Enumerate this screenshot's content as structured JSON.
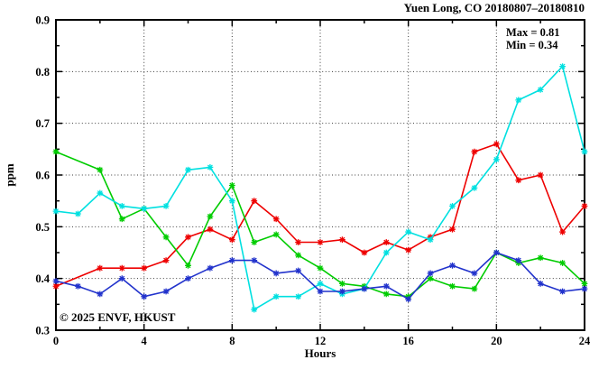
{
  "title": "Yuen Long, CO 20180807–20180810",
  "watermark": "© 2025 ENVF, HKUST",
  "annotation": {
    "max_label": "Max = 0.81",
    "min_label": "Min = 0.34"
  },
  "chart_data": {
    "type": "line",
    "title": "Yuen Long, CO 20180807–20180810",
    "xlabel": "Hours",
    "ylabel": "ppm",
    "xlim": [
      0,
      24
    ],
    "ylim": [
      0.3,
      0.9
    ],
    "x_major_ticks": [
      0,
      4,
      8,
      12,
      16,
      20,
      24
    ],
    "x_minor_ticks": [
      2,
      6,
      10,
      14,
      18,
      22
    ],
    "y_major_ticks": [
      0.3,
      0.4,
      0.5,
      0.6,
      0.7,
      0.8,
      0.9
    ],
    "y_minor_ticks": [
      0.35,
      0.45,
      0.55,
      0.65,
      0.75,
      0.85
    ],
    "grid": "dotted lines at major ticks, on",
    "legend_position": "none",
    "marker": "asterisk",
    "x": [
      0,
      1,
      2,
      3,
      4,
      5,
      6,
      7,
      8,
      9,
      10,
      11,
      12,
      13,
      14,
      15,
      16,
      17,
      18,
      19,
      20,
      21,
      22,
      23,
      24
    ],
    "series": [
      {
        "name": "red",
        "color": "#ee0000",
        "values": [
          0.385,
          null,
          0.42,
          0.42,
          0.42,
          0.435,
          0.48,
          0.495,
          0.475,
          0.55,
          0.515,
          0.47,
          0.47,
          0.475,
          0.45,
          0.47,
          0.455,
          0.48,
          0.495,
          0.645,
          0.66,
          0.59,
          0.6,
          0.49,
          0.54
        ]
      },
      {
        "name": "green",
        "color": "#00cc00",
        "values": [
          0.645,
          null,
          0.61,
          0.515,
          0.535,
          0.48,
          0.425,
          0.52,
          0.58,
          0.47,
          0.485,
          0.445,
          0.42,
          0.39,
          0.385,
          0.37,
          0.365,
          0.4,
          0.385,
          0.38,
          0.45,
          0.43,
          0.44,
          0.43,
          0.39
        ]
      },
      {
        "name": "cyan",
        "color": "#00e0e0",
        "values": [
          0.53,
          0.525,
          0.565,
          0.54,
          0.535,
          0.54,
          0.61,
          0.615,
          0.55,
          0.34,
          0.365,
          0.365,
          0.39,
          0.37,
          0.38,
          0.45,
          0.49,
          0.475,
          0.54,
          0.575,
          0.63,
          0.745,
          0.765,
          0.81,
          0.645
        ]
      },
      {
        "name": "blue",
        "color": "#2233cc",
        "values": [
          0.395,
          0.385,
          0.37,
          0.4,
          0.365,
          0.375,
          0.4,
          0.42,
          0.435,
          0.435,
          0.41,
          0.415,
          0.375,
          0.375,
          0.38,
          0.385,
          0.36,
          0.41,
          0.425,
          0.41,
          0.45,
          0.435,
          0.39,
          0.375,
          0.38
        ]
      }
    ],
    "stats": {
      "max": 0.81,
      "min": 0.34
    }
  }
}
